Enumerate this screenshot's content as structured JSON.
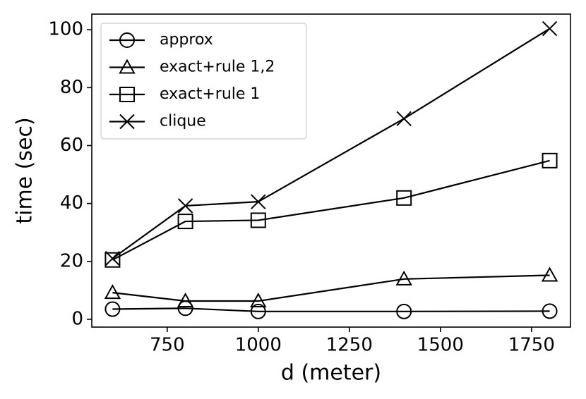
{
  "chart_data": {
    "type": "line",
    "x_label": "d (meter)",
    "y_label": "time (sec)",
    "x": [
      600,
      800,
      1000,
      1400,
      1800
    ],
    "series": [
      {
        "name": "approx",
        "color": "#000000",
        "marker": "circle",
        "values": [
          3.5,
          3.8,
          2.7,
          2.7,
          2.8
        ]
      },
      {
        "name": "exact+rule 1,2",
        "color": "#000000",
        "marker": "triangle",
        "values": [
          9.2,
          6.3,
          6.3,
          13.9,
          15.2
        ]
      },
      {
        "name": "exact+rule 1",
        "color": "#000000",
        "marker": "square",
        "values": [
          20.5,
          33.8,
          34.2,
          41.9,
          54.8
        ]
      },
      {
        "name": "clique",
        "color": "#000000",
        "marker": "x",
        "values": [
          21.0,
          39.2,
          40.6,
          69.3,
          100.4
        ]
      }
    ],
    "xlim": [
      543,
      1857
    ],
    "ylim": [
      -2.7,
      105.4
    ],
    "xticks": [
      750,
      1000,
      1250,
      1500,
      1750
    ],
    "yticks": [
      0,
      20,
      40,
      60,
      80,
      100
    ],
    "legend": "upper left",
    "grid": false
  }
}
